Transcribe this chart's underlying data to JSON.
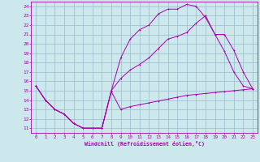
{
  "xlabel": "Windchill (Refroidissement éolien,°C)",
  "xlim": [
    -0.5,
    23.5
  ],
  "ylim": [
    10.5,
    24.5
  ],
  "xticks": [
    0,
    1,
    2,
    3,
    4,
    5,
    6,
    7,
    8,
    9,
    10,
    11,
    12,
    13,
    14,
    15,
    16,
    17,
    18,
    19,
    20,
    21,
    22,
    23
  ],
  "yticks": [
    11,
    12,
    13,
    14,
    15,
    16,
    17,
    18,
    19,
    20,
    21,
    22,
    23,
    24
  ],
  "bg_color": "#cce8ed",
  "line_color": "#aa00aa",
  "grid_color": "#99bbcc",
  "line1_x": [
    0,
    1,
    2,
    3,
    4,
    5,
    6,
    7,
    8,
    9,
    10,
    11,
    12,
    13,
    14,
    15,
    16,
    17,
    18,
    19,
    20,
    21,
    22,
    23
  ],
  "line1_y": [
    15.5,
    14.0,
    13.0,
    12.5,
    11.5,
    11.0,
    11.0,
    11.0,
    14.9,
    13.0,
    13.3,
    13.5,
    13.7,
    13.9,
    14.1,
    14.3,
    14.5,
    14.6,
    14.7,
    14.8,
    14.9,
    15.0,
    15.1,
    15.2
  ],
  "line2_x": [
    0,
    1,
    2,
    3,
    4,
    5,
    6,
    7,
    8,
    9,
    10,
    11,
    12,
    13,
    14,
    15,
    16,
    17,
    18,
    19,
    20,
    21,
    22,
    23
  ],
  "line2_y": [
    15.5,
    14.0,
    13.0,
    12.5,
    11.5,
    11.0,
    11.0,
    11.0,
    15.0,
    18.5,
    20.5,
    21.5,
    22.0,
    23.2,
    23.7,
    23.7,
    24.2,
    24.0,
    22.8,
    21.0,
    19.2,
    17.0,
    15.5,
    15.2
  ],
  "line3_x": [
    0,
    1,
    2,
    3,
    4,
    5,
    6,
    7,
    8,
    9,
    10,
    11,
    12,
    13,
    14,
    15,
    16,
    17,
    18,
    19,
    20,
    21,
    22,
    23
  ],
  "line3_y": [
    15.5,
    14.0,
    13.0,
    12.5,
    11.5,
    11.0,
    11.0,
    11.0,
    15.0,
    16.3,
    17.2,
    17.8,
    18.5,
    19.5,
    20.5,
    20.8,
    21.2,
    22.2,
    23.0,
    21.0,
    21.0,
    19.3,
    17.0,
    15.2
  ]
}
